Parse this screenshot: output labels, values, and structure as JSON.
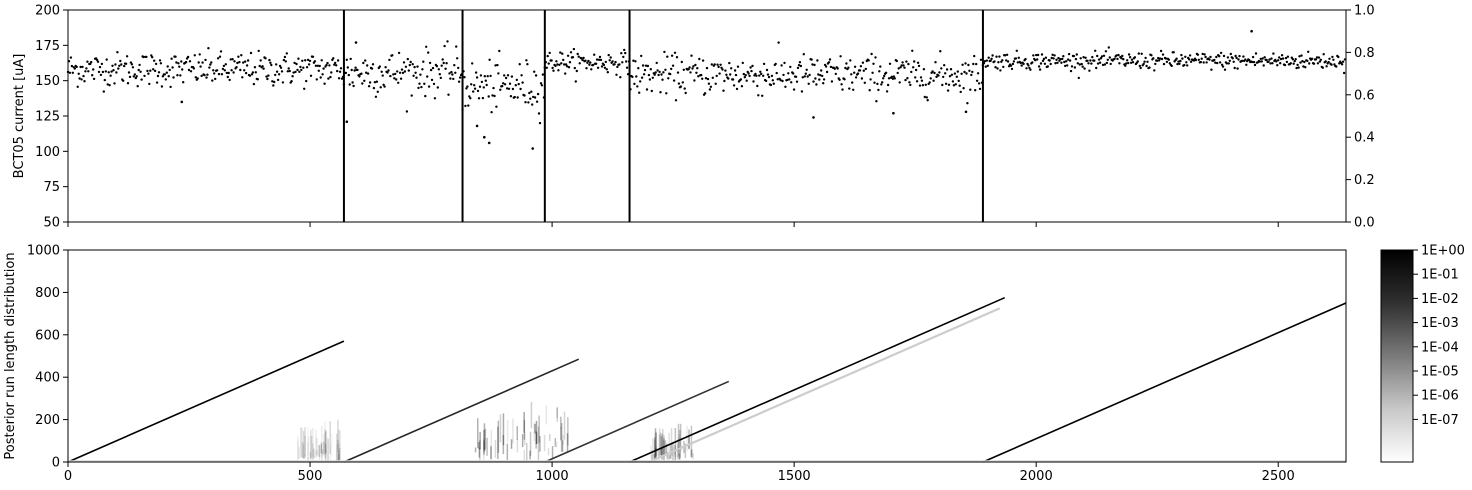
{
  "chart_data": [
    {
      "type": "scatter",
      "ylabel": "BCT05 current [uA]",
      "xlim": [
        0,
        2640
      ],
      "ylim": [
        50,
        200
      ],
      "y_ticks": [
        "50",
        "75",
        "100",
        "125",
        "150",
        "175",
        "200"
      ],
      "y2lim": [
        0.0,
        1.0
      ],
      "y2_ticks": [
        "0.0",
        "0.2",
        "0.4",
        "0.6",
        "0.8",
        "1.0"
      ],
      "changepoints": [
        570,
        815,
        985,
        1160,
        1890
      ],
      "segment_means": [
        {
          "x0": 0,
          "x1": 570,
          "mean": 158,
          "spread": 6
        },
        {
          "x0": 570,
          "x1": 815,
          "mean": 156,
          "spread": 8
        },
        {
          "x0": 815,
          "x1": 985,
          "mean": 146,
          "spread": 9
        },
        {
          "x0": 985,
          "x1": 1160,
          "mean": 163,
          "spread": 4
        },
        {
          "x0": 1160,
          "x1": 1890,
          "mean": 154,
          "spread": 7
        },
        {
          "x0": 1890,
          "x1": 2640,
          "mean": 164,
          "spread": 3
        }
      ],
      "outliers": [
        {
          "x": 235,
          "y": 135
        },
        {
          "x": 576,
          "y": 121
        },
        {
          "x": 595,
          "y": 177
        },
        {
          "x": 845,
          "y": 118
        },
        {
          "x": 860,
          "y": 110
        },
        {
          "x": 870,
          "y": 106
        },
        {
          "x": 960,
          "y": 102
        },
        {
          "x": 1540,
          "y": 124
        },
        {
          "x": 1705,
          "y": 127
        },
        {
          "x": 1855,
          "y": 128
        },
        {
          "x": 2445,
          "y": 185
        }
      ]
    },
    {
      "type": "heatmap",
      "ylabel": "Posterior run length distribution",
      "xlim": [
        0,
        2640
      ],
      "ylim": [
        0,
        1000
      ],
      "x_ticks": [
        "0",
        "500",
        "1000",
        "1500",
        "2000",
        "2500"
      ],
      "y_ticks": [
        "0",
        "200",
        "400",
        "600",
        "800",
        "1000"
      ],
      "colorbar": {
        "scale": "log",
        "labels": [
          "1E+00",
          "1E-01",
          "1E-02",
          "1E-03",
          "1E-04",
          "1E-05",
          "1E-06",
          "1E-07"
        ]
      },
      "run_length_lines": [
        {
          "x0": 0,
          "x1": 570,
          "intensity": 1.0
        },
        {
          "x0": 570,
          "x1": 1055,
          "intensity": 0.85
        },
        {
          "x0": 985,
          "x1": 1365,
          "intensity": 0.8
        },
        {
          "x0": 1160,
          "x1": 1935,
          "intensity": 1.0
        },
        {
          "x0": 1200,
          "x1": 1925,
          "intensity": 0.2
        },
        {
          "x0": 1890,
          "x1": 2640,
          "intensity": 1.0
        }
      ],
      "blobs": [
        {
          "x0": 470,
          "x1": 560,
          "ymax": 60,
          "intensity": 0.25
        },
        {
          "x0": 840,
          "x1": 1035,
          "ymax": 230,
          "intensity": 0.55
        },
        {
          "x0": 1195,
          "x1": 1290,
          "ymax": 70,
          "intensity": 0.4
        }
      ]
    }
  ]
}
